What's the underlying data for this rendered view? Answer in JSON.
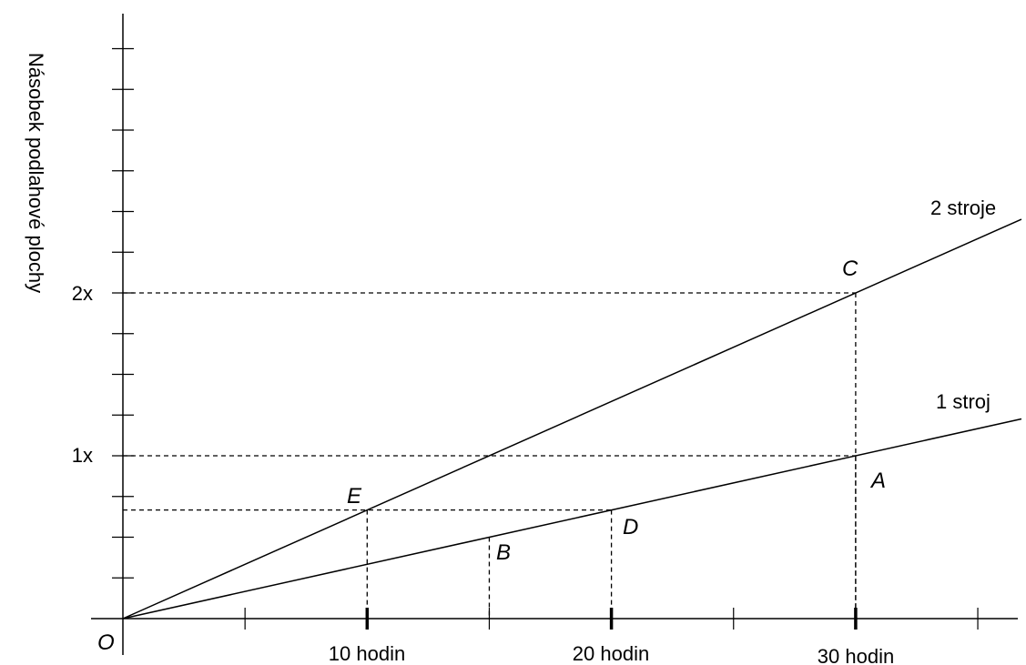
{
  "chart_data": {
    "type": "line",
    "y_axis_label": "Násobek podlahové plochy",
    "origin_label": "O",
    "x_tick_labels": [
      {
        "x": 10,
        "label": "10 hodin"
      },
      {
        "x": 20,
        "label": "20 hodin"
      },
      {
        "x": 30,
        "label": "30 hodin"
      }
    ],
    "y_tick_labels": [
      {
        "y": 1,
        "label": "1x"
      },
      {
        "y": 2,
        "label": "2x"
      }
    ],
    "series": [
      {
        "name": "1 stroj",
        "points": [
          [
            0,
            0
          ],
          [
            30,
            1
          ]
        ]
      },
      {
        "name": "2 stroje",
        "points": [
          [
            0,
            0
          ],
          [
            30,
            2
          ]
        ]
      }
    ],
    "points": [
      {
        "name": "A",
        "x": 30,
        "y": 1
      },
      {
        "name": "B",
        "x": 15,
        "y": 0.5
      },
      {
        "name": "C",
        "x": 30,
        "y": 2
      },
      {
        "name": "D",
        "x": 20,
        "y": 0.667
      },
      {
        "name": "E",
        "x": 10,
        "y": 0.667
      }
    ]
  }
}
